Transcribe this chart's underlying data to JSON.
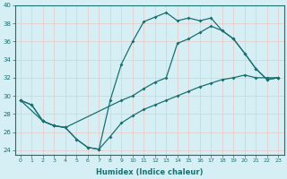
{
  "xlabel": "Humidex (Indice chaleur)",
  "background_color": "#d6eff5",
  "grid_color": "#c8e8ee",
  "line_color": "#1a7070",
  "xlim": [
    -0.5,
    23.5
  ],
  "ylim": [
    23.5,
    40.0
  ],
  "yticks": [
    24,
    26,
    28,
    30,
    32,
    34,
    36,
    38,
    40
  ],
  "line1_x": [
    0,
    1,
    2,
    3,
    4,
    5,
    6,
    7,
    8,
    9,
    10,
    11,
    12,
    13,
    14,
    15,
    16,
    17,
    18,
    19,
    20,
    21,
    22,
    23
  ],
  "line1_y": [
    29.5,
    29.0,
    27.2,
    26.7,
    26.5,
    25.2,
    24.3,
    24.1,
    29.5,
    33.5,
    36.0,
    38.2,
    38.7,
    39.2,
    38.3,
    38.6,
    38.3,
    38.6,
    37.2,
    36.3,
    34.7,
    33.0,
    31.8,
    32.0
  ],
  "line2_x": [
    0,
    2,
    3,
    4,
    9,
    10,
    11,
    12,
    13,
    14,
    15,
    16,
    17,
    18,
    19,
    20,
    21,
    22,
    23
  ],
  "line2_y": [
    29.5,
    27.2,
    26.7,
    26.5,
    29.5,
    30.0,
    30.8,
    31.5,
    32.0,
    35.8,
    36.3,
    37.0,
    37.7,
    37.2,
    36.3,
    34.7,
    33.0,
    31.8,
    32.0
  ],
  "line3_x": [
    0,
    1,
    2,
    3,
    4,
    5,
    6,
    7,
    8,
    9,
    10,
    11,
    12,
    13,
    14,
    15,
    16,
    17,
    18,
    19,
    20,
    21,
    22,
    23
  ],
  "line3_y": [
    29.5,
    29.0,
    27.2,
    26.7,
    26.5,
    25.2,
    24.3,
    24.1,
    25.5,
    27.0,
    27.8,
    28.5,
    29.0,
    29.5,
    30.0,
    30.5,
    31.0,
    31.4,
    31.8,
    32.0,
    32.3,
    32.0,
    32.0,
    32.0
  ]
}
